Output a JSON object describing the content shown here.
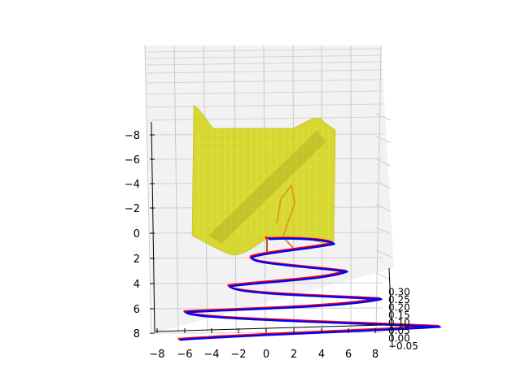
{
  "chart_data": {
    "type": "3d-line-surface",
    "title": "",
    "xlabel": "",
    "ylabel": "",
    "zlabel": "",
    "x_ticks": [
      "−8",
      "−6",
      "−4",
      "−2",
      "0",
      "2",
      "4",
      "6",
      "8"
    ],
    "y_ticks": [
      "−8",
      "−6",
      "−4",
      "−2",
      "0",
      "2",
      "4",
      "6",
      "8"
    ],
    "z_ticks": [
      "−0.05",
      "0.00",
      "0.05",
      "0.10",
      "0.15",
      "0.20",
      "0.25",
      "0.30"
    ],
    "xlim": [
      -8,
      8
    ],
    "ylim": [
      -8,
      8
    ],
    "zlim": [
      -0.05,
      0.3
    ],
    "grid": true,
    "surface": {
      "color": "#d4d41c",
      "description": "yellow surface"
    },
    "series": [
      {
        "color": "#ff0000",
        "style": "spiral line"
      },
      {
        "color": "#0000ff",
        "style": "spiral line"
      }
    ]
  }
}
